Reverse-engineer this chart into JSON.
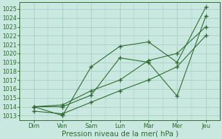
{
  "x_labels": [
    "Dim",
    "Ven",
    "Sam",
    "Lun",
    "Mar",
    "Mer",
    "Jeu"
  ],
  "x_ticks": [
    0,
    1,
    2,
    3,
    4,
    5,
    6
  ],
  "line_jagged": [
    1014.0,
    1013.0,
    1018.5,
    1020.8,
    1021.3,
    1019.0,
    1025.2
  ],
  "line_mid_jagged": [
    1014.0,
    1014.0,
    1015.3,
    1019.5,
    1019.0,
    1015.2,
    1024.2
  ],
  "line_straight1": [
    1014.0,
    1014.2,
    1015.8,
    1017.0,
    1019.2,
    1020.0,
    1023.0
  ],
  "line_straight2": [
    1013.5,
    1013.2,
    1014.5,
    1015.8,
    1017.0,
    1018.5,
    1022.0
  ],
  "ylim_min": 1012.5,
  "ylim_max": 1025.8,
  "yticks": [
    1013,
    1014,
    1015,
    1016,
    1017,
    1018,
    1019,
    1020,
    1021,
    1022,
    1023,
    1024,
    1025
  ],
  "line_color": "#2d6a2d",
  "bg_color": "#c8e8e0",
  "grid_color": "#a0c8c0",
  "xlabel": "Pression niveau de la mer( hPa )",
  "xlabel_fontsize": 7.5,
  "tick_fontsize": 6,
  "marker": "+",
  "marker_size": 4,
  "linewidth": 0.8
}
